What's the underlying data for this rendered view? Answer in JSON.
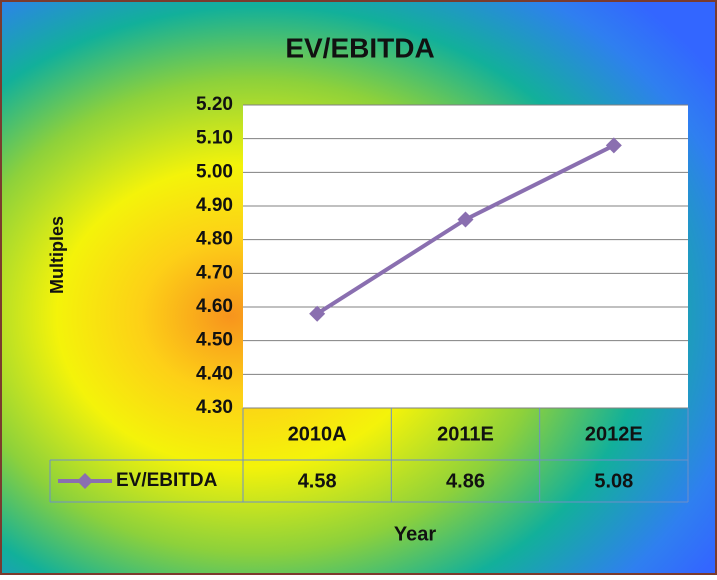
{
  "chart_data": {
    "type": "line",
    "title": "EV/EBITDA",
    "x_label": "Year",
    "y_label": "Multiples",
    "categories": [
      "2010A",
      "2011E",
      "2012E"
    ],
    "series": [
      {
        "name": "EV/EBITDA",
        "color": "#8a6fb0",
        "values": [
          4.58,
          4.86,
          5.08
        ]
      }
    ],
    "ylim": [
      4.3,
      5.2
    ],
    "yticks": [
      {
        "value": 4.3,
        "label": "4.30"
      },
      {
        "value": 4.4,
        "label": "4.40"
      },
      {
        "value": 4.5,
        "label": "4.50"
      },
      {
        "value": 4.6,
        "label": "4.60"
      },
      {
        "value": 4.7,
        "label": "4.70"
      },
      {
        "value": 4.8,
        "label": "4.80"
      },
      {
        "value": 4.9,
        "label": "4.90"
      },
      {
        "value": 5.0,
        "label": "5.00"
      },
      {
        "value": 5.1,
        "label": "5.10"
      },
      {
        "value": 5.2,
        "label": "5.20"
      }
    ],
    "grid": true,
    "data_table": true
  }
}
